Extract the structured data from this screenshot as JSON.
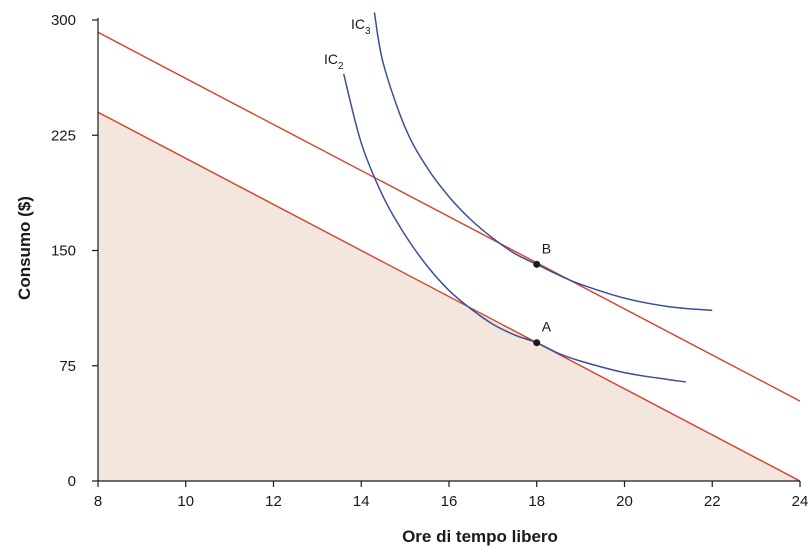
{
  "colors": {
    "budget_line": "#d9402b",
    "indifference_curve": "#3b4f9a",
    "feasible_fill": "#f3e6dc",
    "axis": "#1a1a1a",
    "point": "#1a1a1a"
  },
  "chart_data": {
    "type": "line",
    "title": "",
    "xlabel": "Ore di tempo libero",
    "ylabel": "Consumo ($)",
    "xlim": [
      8,
      24
    ],
    "ylim": [
      0,
      300
    ],
    "x_ticks": [
      8,
      10,
      12,
      14,
      16,
      18,
      20,
      22,
      24
    ],
    "y_ticks": [
      0,
      75,
      150,
      225,
      300
    ],
    "grid": false,
    "feasible_region": {
      "points": [
        {
          "x": 8,
          "y": 240
        },
        {
          "x": 24,
          "y": 0
        },
        {
          "x": 8,
          "y": 0
        }
      ]
    },
    "budget_lines": [
      {
        "points": [
          {
            "x": 8,
            "y": 240
          },
          {
            "x": 24,
            "y": 0
          }
        ]
      },
      {
        "points": [
          {
            "x": 8,
            "y": 292
          },
          {
            "x": 24,
            "y": 52
          }
        ]
      }
    ],
    "indifference_curves": [
      {
        "name": "IC2",
        "label_main": "IC",
        "label_sub": "2",
        "points": [
          {
            "x": 13.6,
            "y": 265
          },
          {
            "x": 14.0,
            "y": 220
          },
          {
            "x": 14.5,
            "y": 185
          },
          {
            "x": 15.0,
            "y": 160
          },
          {
            "x": 15.5,
            "y": 140
          },
          {
            "x": 16.0,
            "y": 124
          },
          {
            "x": 16.5,
            "y": 112
          },
          {
            "x": 17.0,
            "y": 102
          },
          {
            "x": 17.5,
            "y": 95
          },
          {
            "x": 18.0,
            "y": 90
          },
          {
            "x": 18.5,
            "y": 83
          },
          {
            "x": 19.0,
            "y": 78
          },
          {
            "x": 20.0,
            "y": 70.5
          },
          {
            "x": 21.0,
            "y": 66
          },
          {
            "x": 21.4,
            "y": 64.5
          }
        ]
      },
      {
        "name": "IC3",
        "label_main": "IC",
        "label_sub": "3",
        "points": [
          {
            "x": 14.3,
            "y": 305
          },
          {
            "x": 14.5,
            "y": 272
          },
          {
            "x": 15.0,
            "y": 230
          },
          {
            "x": 15.5,
            "y": 204
          },
          {
            "x": 16.0,
            "y": 185
          },
          {
            "x": 16.5,
            "y": 170
          },
          {
            "x": 17.0,
            "y": 158
          },
          {
            "x": 17.5,
            "y": 148
          },
          {
            "x": 18.0,
            "y": 141
          },
          {
            "x": 18.5,
            "y": 134
          },
          {
            "x": 19.0,
            "y": 128
          },
          {
            "x": 20.0,
            "y": 119
          },
          {
            "x": 21.0,
            "y": 113.5
          },
          {
            "x": 22.0,
            "y": 111
          }
        ]
      }
    ],
    "points": [
      {
        "label": "A",
        "x": 18,
        "y": 90
      },
      {
        "label": "B",
        "x": 18,
        "y": 141
      }
    ]
  }
}
